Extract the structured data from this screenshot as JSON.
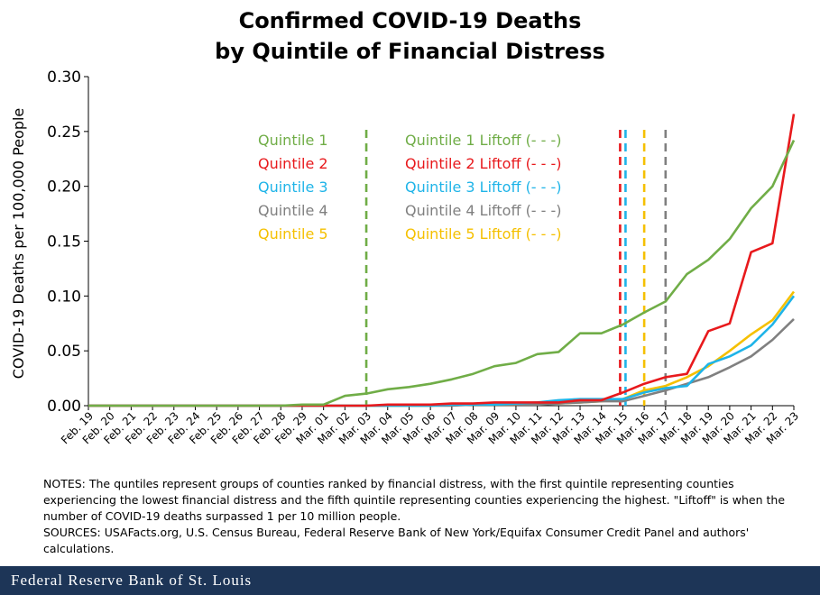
{
  "title_line1": "Confirmed COVID-19 Deaths",
  "title_line2": "by Quintile of Financial Distress",
  "notes": "NOTES: The quntiles represent groups of counties ranked by financial distress, with the first quintile representing counties experiencing the lowest financial distress and the fifth quintile representing counties experiencing the highest. \"Liftoff\" is when the number of COVID-19 deaths surpassed 1 per 10 million people.",
  "sources": "SOURCES: USAFacts.org, U.S. Census Bureau, Federal Reserve Bank of New York/Equifax Consumer Credit Panel and authors' calculations.",
  "footer": "Federal Reserve Bank of St. Louis",
  "chart_data": {
    "type": "line",
    "ylabel": "COVID-19 Deaths per 100,000 People",
    "xlabel": "",
    "ylim": [
      0,
      0.3
    ],
    "yticks": [
      "0.00",
      "0.05",
      "0.10",
      "0.15",
      "0.20",
      "0.25",
      "0.30"
    ],
    "grid": false,
    "legend_position": "top-center",
    "categories": [
      "Feb. 19",
      "Feb. 20",
      "Feb. 21",
      "Feb. 22",
      "Feb. 23",
      "Feb. 24",
      "Feb. 25",
      "Feb. 26",
      "Feb. 27",
      "Feb. 28",
      "Feb. 29",
      "Mar. 01",
      "Mar. 02",
      "Mar. 03",
      "Mar. 04",
      "Mar. 05",
      "Mar. 06",
      "Mar. 07",
      "Mar. 08",
      "Mar. 09",
      "Mar. 10",
      "Mar. 11",
      "Mar. 12",
      "Mar. 13",
      "Mar. 14",
      "Mar. 15",
      "Mar. 16",
      "Mar. 17",
      "Mar. 18",
      "Mar. 19",
      "Mar. 20",
      "Mar. 21",
      "Mar. 22",
      "Mar. 23"
    ],
    "series": [
      {
        "name": "Quintile 1",
        "color": "#70ad47",
        "values": [
          0,
          0,
          0,
          0,
          0,
          0,
          0,
          0,
          0,
          0,
          0.001,
          0.001,
          0.009,
          0.011,
          0.015,
          0.017,
          0.02,
          0.024,
          0.029,
          0.036,
          0.039,
          0.047,
          0.049,
          0.066,
          0.066,
          0.074,
          0.085,
          0.095,
          0.12,
          0.133,
          0.152,
          0.18,
          0.2,
          0.242
        ]
      },
      {
        "name": "Quintile 2",
        "color": "#e8191c",
        "values": [
          0,
          0,
          0,
          0,
          0,
          0,
          0,
          0,
          0,
          0,
          0,
          0,
          0,
          0,
          0.001,
          0.001,
          0.001,
          0.002,
          0.002,
          0.003,
          0.003,
          0.003,
          0.003,
          0.005,
          0.005,
          0.012,
          0.02,
          0.026,
          0.029,
          0.068,
          0.075,
          0.14,
          0.148,
          0.266
        ]
      },
      {
        "name": "Quintile 3",
        "color": "#1fb4e8",
        "values": [
          0,
          0,
          0,
          0,
          0,
          0,
          0,
          0,
          0,
          0,
          0,
          0,
          0,
          0,
          0,
          0,
          0,
          0.001,
          0.001,
          0.001,
          0.002,
          0.003,
          0.005,
          0.006,
          0.006,
          0.006,
          0.012,
          0.016,
          0.018,
          0.038,
          0.045,
          0.055,
          0.074,
          0.1
        ]
      },
      {
        "name": "Quintile 4",
        "color": "#808080",
        "values": [
          0,
          0,
          0,
          0,
          0,
          0,
          0,
          0,
          0,
          0,
          0,
          0,
          0,
          0,
          0,
          0,
          0,
          0,
          0.001,
          0.001,
          0.001,
          0.001,
          0.002,
          0.003,
          0.004,
          0.004,
          0.009,
          0.014,
          0.02,
          0.026,
          0.035,
          0.045,
          0.06,
          0.079
        ]
      },
      {
        "name": "Quintile 5",
        "color": "#f5c000",
        "values": [
          0,
          0,
          0,
          0,
          0,
          0,
          0,
          0,
          0,
          0,
          0,
          0,
          0,
          0,
          0,
          0,
          0,
          0.001,
          0.001,
          0.001,
          0.001,
          0.002,
          0.002,
          0.003,
          0.004,
          0.006,
          0.014,
          0.018,
          0.026,
          0.036,
          0.05,
          0.065,
          0.078,
          0.104
        ]
      }
    ],
    "liftoff": [
      {
        "name": "Quintile 1 Liftoff (- - -)",
        "color": "#70ad47",
        "x": "Mar. 03"
      },
      {
        "name": "Quintile 2 Liftoff (- - -)",
        "color": "#e8191c",
        "x": "Mar. 15"
      },
      {
        "name": "Quintile 3 Liftoff (- - -)",
        "color": "#1fb4e8",
        "x": "Mar. 15"
      },
      {
        "name": "Quintile 4 Liftoff (- - -)",
        "color": "#808080",
        "x": "Mar. 17"
      },
      {
        "name": "Quintile 5 Liftoff (- - -)",
        "color": "#f5c000",
        "x": "Mar. 16"
      }
    ]
  }
}
